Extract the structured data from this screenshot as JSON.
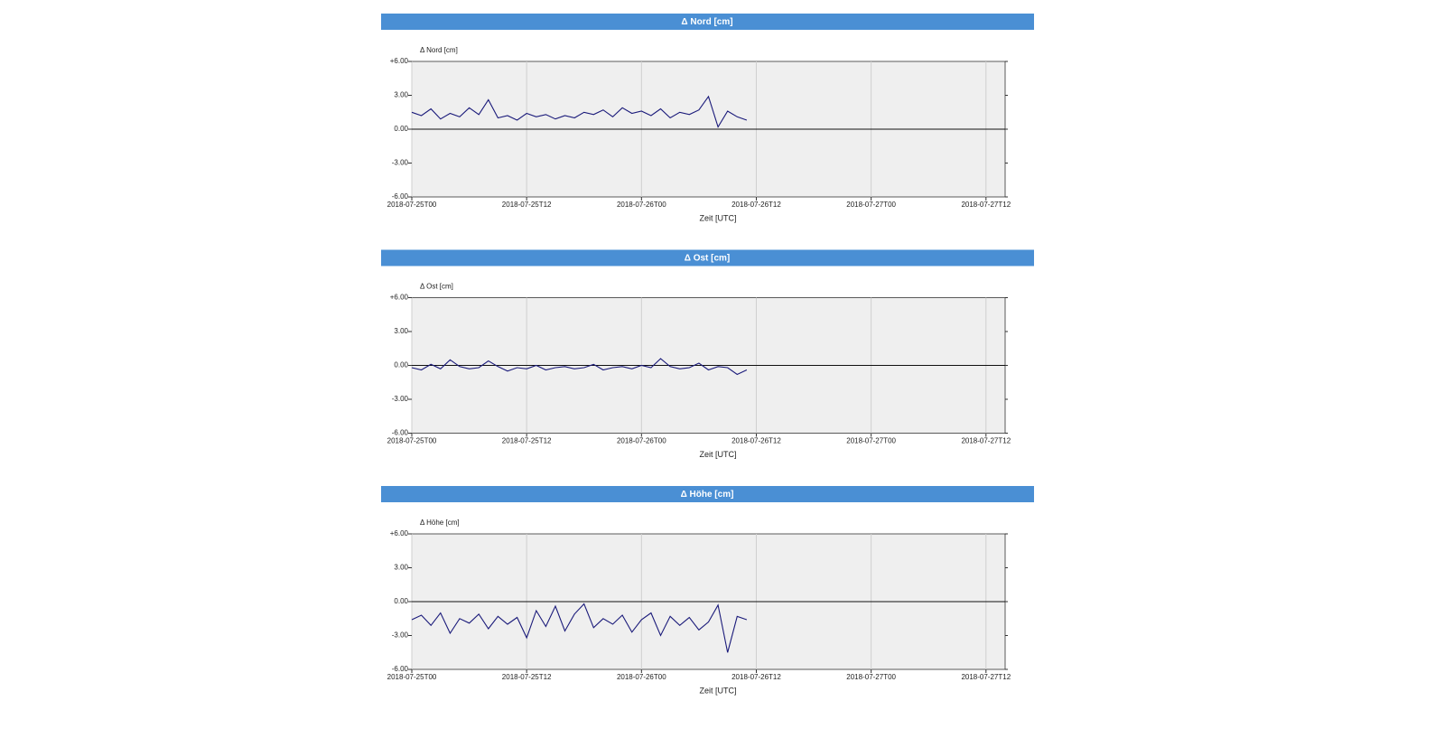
{
  "chart_data": [
    {
      "type": "line",
      "title": "Δ Nord [cm]",
      "ylabel": "Δ Nord [cm]",
      "xlabel": "Zeit [UTC]",
      "x": [
        "2018-07-25T00",
        "2018-07-25T01",
        "2018-07-25T02",
        "2018-07-25T03",
        "2018-07-25T04",
        "2018-07-25T05",
        "2018-07-25T06",
        "2018-07-25T07",
        "2018-07-25T08",
        "2018-07-25T09",
        "2018-07-25T10",
        "2018-07-25T11",
        "2018-07-25T12",
        "2018-07-25T13",
        "2018-07-25T14",
        "2018-07-25T15",
        "2018-07-25T16",
        "2018-07-25T17",
        "2018-07-25T18",
        "2018-07-25T19",
        "2018-07-25T20",
        "2018-07-25T21",
        "2018-07-25T22",
        "2018-07-25T23",
        "2018-07-26T00",
        "2018-07-26T01",
        "2018-07-26T02",
        "2018-07-26T03",
        "2018-07-26T04",
        "2018-07-26T05",
        "2018-07-26T06",
        "2018-07-26T07",
        "2018-07-26T08",
        "2018-07-26T09",
        "2018-07-26T10",
        "2018-07-26T11"
      ],
      "values": [
        1.5,
        1.2,
        1.8,
        0.9,
        1.4,
        1.1,
        1.9,
        1.3,
        2.6,
        1.0,
        1.2,
        0.8,
        1.4,
        1.1,
        1.3,
        0.9,
        1.2,
        1.0,
        1.5,
        1.3,
        1.7,
        1.1,
        1.9,
        1.4,
        1.6,
        1.2,
        1.8,
        1.0,
        1.5,
        1.3,
        1.7,
        2.9,
        0.2,
        1.6,
        1.1,
        0.8
      ],
      "color": "#1a1a7a",
      "xlim": [
        "2018-07-25T00",
        "2018-07-27T14"
      ],
      "xticks": [
        "2018-07-25T00",
        "2018-07-25T12",
        "2018-07-26T00",
        "2018-07-26T12",
        "2018-07-27T00",
        "2018-07-27T12"
      ],
      "ylim": [
        -6,
        6
      ],
      "yticks": [
        {
          "value": 6,
          "label": "+6.00"
        },
        {
          "value": 3,
          "label": "3.00"
        },
        {
          "value": 0,
          "label": "0.00"
        },
        {
          "value": -3,
          "label": "-3.00"
        },
        {
          "value": -6,
          "label": "-6.00"
        }
      ],
      "grid": true
    },
    {
      "type": "line",
      "title": "Δ Ost [cm]",
      "ylabel": "Δ Ost [cm]",
      "xlabel": "Zeit [UTC]",
      "x": [
        "2018-07-25T00",
        "2018-07-25T01",
        "2018-07-25T02",
        "2018-07-25T03",
        "2018-07-25T04",
        "2018-07-25T05",
        "2018-07-25T06",
        "2018-07-25T07",
        "2018-07-25T08",
        "2018-07-25T09",
        "2018-07-25T10",
        "2018-07-25T11",
        "2018-07-25T12",
        "2018-07-25T13",
        "2018-07-25T14",
        "2018-07-25T15",
        "2018-07-25T16",
        "2018-07-25T17",
        "2018-07-25T18",
        "2018-07-25T19",
        "2018-07-25T20",
        "2018-07-25T21",
        "2018-07-25T22",
        "2018-07-25T23",
        "2018-07-26T00",
        "2018-07-26T01",
        "2018-07-26T02",
        "2018-07-26T03",
        "2018-07-26T04",
        "2018-07-26T05",
        "2018-07-26T06",
        "2018-07-26T07",
        "2018-07-26T08",
        "2018-07-26T09",
        "2018-07-26T10",
        "2018-07-26T11"
      ],
      "values": [
        -0.2,
        -0.4,
        0.1,
        -0.3,
        0.5,
        -0.1,
        -0.3,
        -0.2,
        0.4,
        -0.1,
        -0.5,
        -0.2,
        -0.3,
        0.0,
        -0.4,
        -0.2,
        -0.1,
        -0.3,
        -0.2,
        0.1,
        -0.4,
        -0.2,
        -0.1,
        -0.3,
        0.0,
        -0.2,
        0.6,
        -0.1,
        -0.3,
        -0.2,
        0.2,
        -0.4,
        -0.1,
        -0.2,
        -0.8,
        -0.4
      ],
      "color": "#1a1a7a",
      "xlim": [
        "2018-07-25T00",
        "2018-07-27T14"
      ],
      "xticks": [
        "2018-07-25T00",
        "2018-07-25T12",
        "2018-07-26T00",
        "2018-07-26T12",
        "2018-07-27T00",
        "2018-07-27T12"
      ],
      "ylim": [
        -6,
        6
      ],
      "yticks": [
        {
          "value": 6,
          "label": "+6.00"
        },
        {
          "value": 3,
          "label": "3.00"
        },
        {
          "value": 0,
          "label": "0.00"
        },
        {
          "value": -3,
          "label": "-3.00"
        },
        {
          "value": -6,
          "label": "-6.00"
        }
      ],
      "grid": true
    },
    {
      "type": "line",
      "title": "Δ Höhe [cm]",
      "ylabel": "Δ Höhe [cm]",
      "xlabel": "Zeit [UTC]",
      "x": [
        "2018-07-25T00",
        "2018-07-25T01",
        "2018-07-25T02",
        "2018-07-25T03",
        "2018-07-25T04",
        "2018-07-25T05",
        "2018-07-25T06",
        "2018-07-25T07",
        "2018-07-25T08",
        "2018-07-25T09",
        "2018-07-25T10",
        "2018-07-25T11",
        "2018-07-25T12",
        "2018-07-25T13",
        "2018-07-25T14",
        "2018-07-25T15",
        "2018-07-25T16",
        "2018-07-25T17",
        "2018-07-25T18",
        "2018-07-25T19",
        "2018-07-25T20",
        "2018-07-25T21",
        "2018-07-25T22",
        "2018-07-25T23",
        "2018-07-26T00",
        "2018-07-26T01",
        "2018-07-26T02",
        "2018-07-26T03",
        "2018-07-26T04",
        "2018-07-26T05",
        "2018-07-26T06",
        "2018-07-26T07",
        "2018-07-26T08",
        "2018-07-26T09",
        "2018-07-26T10",
        "2018-07-26T11"
      ],
      "values": [
        -1.6,
        -1.2,
        -2.1,
        -1.0,
        -2.8,
        -1.5,
        -1.9,
        -1.1,
        -2.4,
        -1.3,
        -2.0,
        -1.4,
        -3.2,
        -0.8,
        -2.2,
        -0.4,
        -2.6,
        -1.1,
        -0.2,
        -2.3,
        -1.5,
        -2.0,
        -1.2,
        -2.7,
        -1.6,
        -1.0,
        -3.0,
        -1.3,
        -2.1,
        -1.4,
        -2.5,
        -1.8,
        -0.3,
        -4.5,
        -1.3,
        -1.6
      ],
      "color": "#1a1a7a",
      "xlim": [
        "2018-07-25T00",
        "2018-07-27T14"
      ],
      "xticks": [
        "2018-07-25T00",
        "2018-07-25T12",
        "2018-07-26T00",
        "2018-07-26T12",
        "2018-07-27T00",
        "2018-07-27T12"
      ],
      "ylim": [
        -6,
        6
      ],
      "yticks": [
        {
          "value": 6,
          "label": "+6.00"
        },
        {
          "value": 3,
          "label": "3.00"
        },
        {
          "value": 0,
          "label": "0.00"
        },
        {
          "value": -3,
          "label": "-3.00"
        },
        {
          "value": -6,
          "label": "-6.00"
        }
      ],
      "grid": true
    }
  ]
}
